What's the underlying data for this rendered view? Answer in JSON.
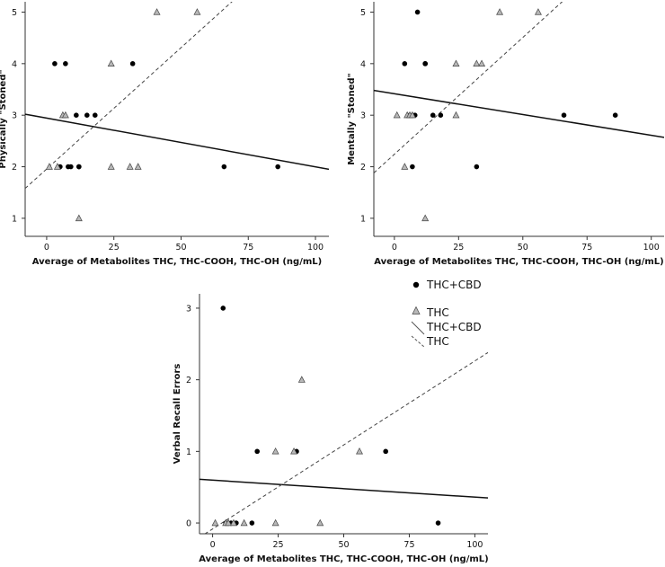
{
  "legend": {
    "entries": [
      {
        "label": "THC+CBD",
        "kind": "circle"
      },
      {
        "label": "THC",
        "kind": "triangle"
      },
      {
        "label": "THC+CBD",
        "kind": "solid-line"
      },
      {
        "label": "THC",
        "kind": "dashed-line"
      }
    ],
    "placement": "middle, right of bottom panel"
  },
  "chart_data": [
    {
      "type": "scatter",
      "xlabel": "Average of Metabolites THC, THC-COOH, THC-OH (ng/mL)",
      "ylabel": "Physically \"Stoned\"",
      "xlim": [
        -8,
        105
      ],
      "ylim": [
        0.65,
        5.2
      ],
      "xticks": [
        0,
        25,
        50,
        75,
        100
      ],
      "yticks": [
        1,
        2,
        3,
        4,
        5
      ],
      "grid": false,
      "series": [
        {
          "name": "THC+CBD",
          "marker": "circle",
          "x": [
            3,
            7,
            11,
            15,
            18,
            12,
            5,
            8,
            9,
            12,
            32,
            66,
            86
          ],
          "y": [
            4,
            4,
            3,
            3,
            3,
            2,
            2,
            2,
            2,
            2,
            4,
            2,
            2
          ]
        },
        {
          "name": "THC",
          "marker": "triangle",
          "x": [
            1,
            4,
            6,
            7,
            12,
            24,
            24,
            31,
            34,
            41,
            56
          ],
          "y": [
            2,
            2,
            3,
            3,
            1,
            4,
            2,
            2,
            2,
            5,
            5
          ]
        }
      ],
      "fits": [
        {
          "name": "THC+CBD",
          "style": "solid",
          "x": [
            -8,
            105
          ],
          "y": [
            3.02,
            1.95
          ]
        },
        {
          "name": "THC",
          "style": "dashed",
          "x": [
            -8,
            105
          ],
          "y": [
            1.58,
            6.9
          ]
        }
      ]
    },
    {
      "type": "scatter",
      "xlabel": "Average of Metabolites THC, THC-COOH, THC-OH (ng/mL)",
      "ylabel": "Mentally \"Stoned\"",
      "xlim": [
        -8,
        105
      ],
      "ylim": [
        0.65,
        5.2
      ],
      "xticks": [
        0,
        25,
        50,
        75,
        100
      ],
      "yticks": [
        1,
        2,
        3,
        4,
        5
      ],
      "grid": false,
      "series": [
        {
          "name": "THC+CBD",
          "marker": "circle",
          "x": [
            9,
            4,
            12,
            12,
            6,
            8,
            15,
            18,
            7,
            32,
            66,
            86
          ],
          "y": [
            5,
            4,
            4,
            4,
            3,
            3,
            3,
            3,
            2,
            2,
            3,
            3
          ]
        },
        {
          "name": "THC",
          "marker": "triangle",
          "x": [
            1,
            5,
            6,
            7,
            24,
            24,
            32,
            34,
            41,
            56,
            4,
            12
          ],
          "y": [
            3,
            3,
            3,
            3,
            4,
            3,
            4,
            4,
            5,
            5,
            2,
            1
          ]
        }
      ],
      "fits": [
        {
          "name": "THC+CBD",
          "style": "solid",
          "x": [
            -8,
            105
          ],
          "y": [
            3.48,
            2.57
          ]
        },
        {
          "name": "THC",
          "style": "dashed",
          "x": [
            -8,
            105
          ],
          "y": [
            1.88,
            7.0
          ]
        }
      ]
    },
    {
      "type": "scatter",
      "xlabel": "Average of Metabolites THC, THC-COOH, THC-OH (ng/mL)",
      "ylabel": "Verbal Recall Errors",
      "xlim": [
        -5,
        105
      ],
      "ylim": [
        -0.15,
        3.2
      ],
      "xticks": [
        0,
        25,
        50,
        75,
        100
      ],
      "yticks": [
        0,
        1,
        2,
        3
      ],
      "grid": false,
      "series": [
        {
          "name": "THC+CBD",
          "marker": "circle",
          "x": [
            4,
            17,
            32,
            66,
            5,
            7,
            9,
            15,
            86
          ],
          "y": [
            3,
            1,
            1,
            1,
            0,
            0,
            0,
            0,
            0
          ]
        },
        {
          "name": "THC",
          "marker": "triangle",
          "x": [
            1,
            5,
            6,
            8,
            12,
            24,
            24,
            31,
            34,
            41,
            56
          ],
          "y": [
            0,
            0,
            0,
            0,
            0,
            1,
            0,
            1,
            2,
            0,
            1
          ]
        }
      ],
      "fits": [
        {
          "name": "THC+CBD",
          "style": "solid",
          "x": [
            -5,
            105
          ],
          "y": [
            0.61,
            0.35
          ]
        },
        {
          "name": "THC",
          "style": "dashed",
          "x": [
            -5,
            105
          ],
          "y": [
            -0.2,
            2.38
          ]
        }
      ]
    }
  ]
}
